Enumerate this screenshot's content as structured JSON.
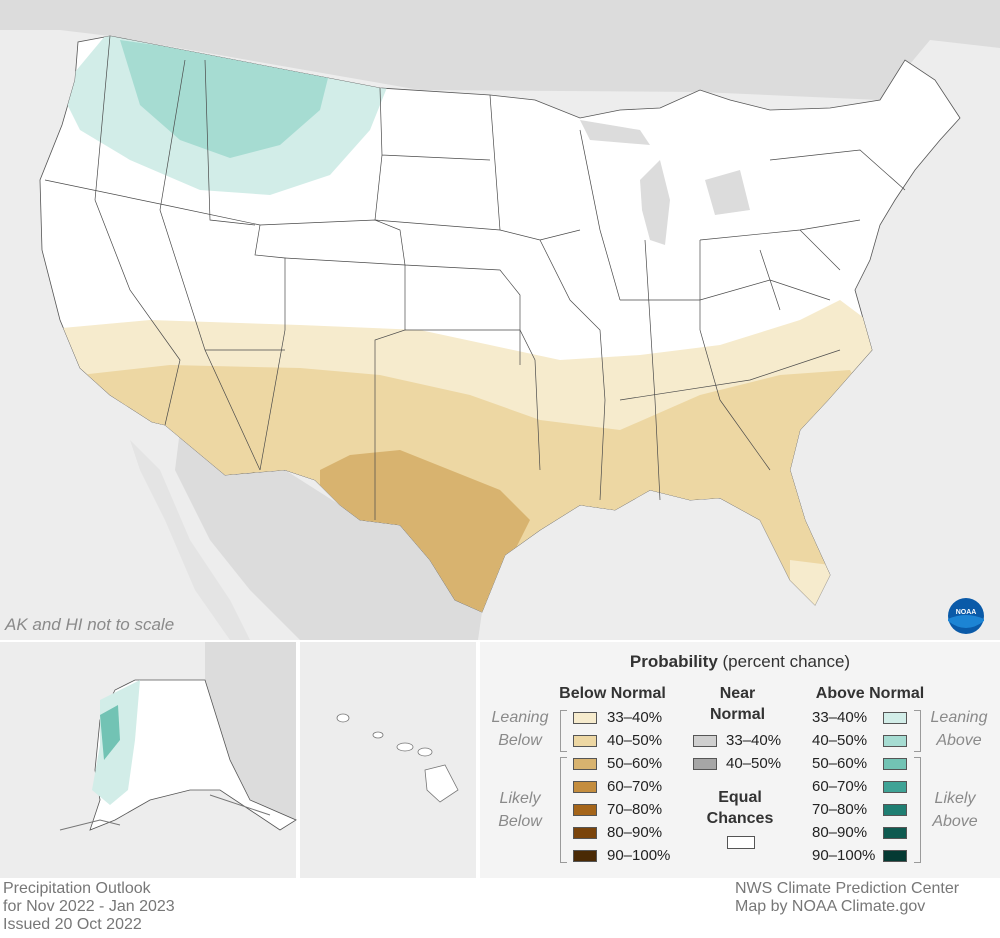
{
  "note": "AK and HI not to scale",
  "legend": {
    "title_bold": "Probability",
    "title_rest": " (percent chance)",
    "below_normal": "Below Normal",
    "near_normal_line1": "Near",
    "near_normal_line2": "Normal",
    "above_normal": "Above Normal",
    "leaning_below_1": "Leaning",
    "leaning_below_2": "Below",
    "likely_below_1": "Likely",
    "likely_below_2": "Below",
    "leaning_above_1": "Leaning",
    "leaning_above_2": "Above",
    "likely_above_1": "Likely",
    "likely_above_2": "Above",
    "equal_chances_1": "Equal",
    "equal_chances_2": "Chances",
    "below": [
      {
        "label": "33–40%",
        "color": "#f6ebcd"
      },
      {
        "label": "40–50%",
        "color": "#edd7a3"
      },
      {
        "label": "50–60%",
        "color": "#d8b36f"
      },
      {
        "label": "60–70%",
        "color": "#c48d3e"
      },
      {
        "label": "70–80%",
        "color": "#a5651a"
      },
      {
        "label": "80–90%",
        "color": "#7a440b"
      },
      {
        "label": "90–100%",
        "color": "#4a2a05"
      }
    ],
    "near": [
      {
        "label": "33–40%",
        "color": "#cfcfcf"
      },
      {
        "label": "40–50%",
        "color": "#a6a6a6"
      }
    ],
    "above": [
      {
        "label": "33–40%",
        "color": "#d2ede8"
      },
      {
        "label": "40–50%",
        "color": "#a6dcd2"
      },
      {
        "label": "50–60%",
        "color": "#72c3b4"
      },
      {
        "label": "60–70%",
        "color": "#3fa396"
      },
      {
        "label": "70–80%",
        "color": "#1f7e72"
      },
      {
        "label": "80–90%",
        "color": "#0f5a50"
      },
      {
        "label": "90–100%",
        "color": "#053a33"
      }
    ],
    "equal_color": "#ffffff"
  },
  "footer": {
    "left": [
      "Precipitation Outlook",
      "for Nov 2022 - Jan 2023",
      "Issued 20 Oct 2022"
    ],
    "right": [
      "NWS Climate Prediction Center",
      "Map by NOAA Climate.gov"
    ]
  },
  "logo_text": "NOAA"
}
